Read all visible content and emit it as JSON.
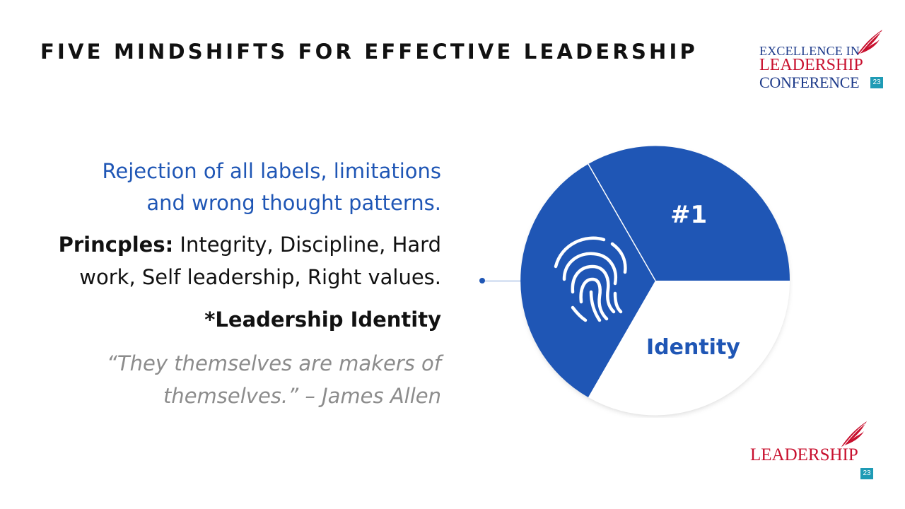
{
  "slide": {
    "title": "FIVE MINDSHIFTS FOR EFFECTIVE LEADERSHIP"
  },
  "conference_logo": {
    "line1": "EXCELLENCE IN",
    "line2": "LEADERSHIP",
    "line3": "CONFERENCE",
    "badge": "23",
    "colors": {
      "navy": "#1d3a8a",
      "red": "#c8102e",
      "teal": "#1f9bb5"
    }
  },
  "content": {
    "tagline_line1": "Rejection of all labels, limitations",
    "tagline_line2": "and wrong thought patterns.",
    "principles_label": "Princples:",
    "principles_line1_rest": "Integrity, Discipline, Hard",
    "principles_line2": "work, Self leadership, Right values.",
    "identity_label": "*Leadership Identity",
    "quote_line1": "“They themselves are makers of",
    "quote_line2": "themselves.” – James Allen"
  },
  "diagram": {
    "number_label": "#1",
    "segment_label": "Identity",
    "icon": "fingerprint-icon",
    "colors": {
      "primary": "#1f56b5",
      "background": "#ffffff"
    }
  },
  "footer_logo": {
    "word": "LEADERSHIP",
    "badge": "23"
  }
}
